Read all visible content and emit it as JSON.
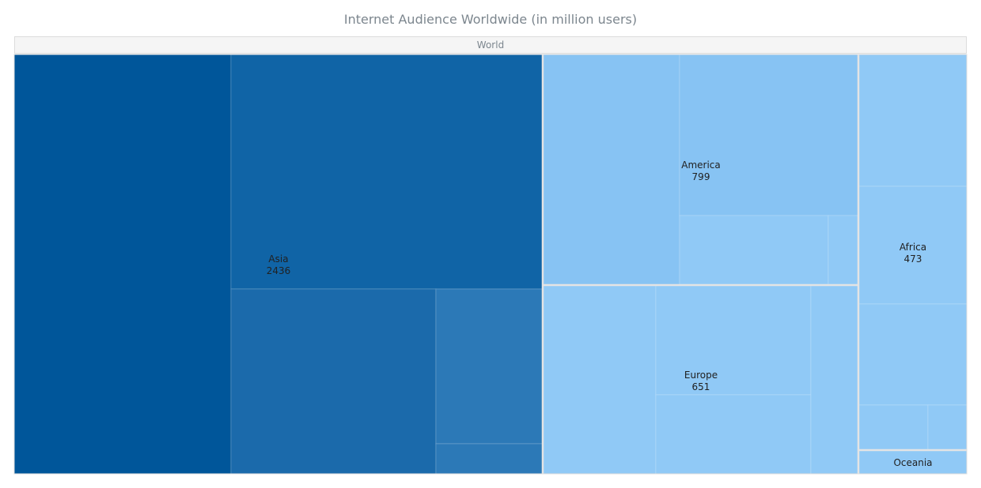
{
  "chart_data": {
    "type": "treemap",
    "title": "Internet Audience Worldwide (in million users)",
    "root": {
      "name": "World"
    },
    "regions": [
      {
        "name": "Asia",
        "value": 2436,
        "color": "#1064a6"
      },
      {
        "name": "America",
        "value": 799,
        "color": "#87c3f3"
      },
      {
        "name": "Europe",
        "value": 651,
        "color": "#90c9f6"
      },
      {
        "name": "Africa",
        "value": 473,
        "color": "#90c9f6"
      },
      {
        "name": "Oceania",
        "value": null,
        "color": "#90c9f6"
      }
    ],
    "colors": {
      "darkest": "#00569a",
      "dark": "#1064a6",
      "medium": "#1b6aab",
      "mediumLight": "#2c79b7",
      "light": "#87c3f3",
      "lighter": "#90c9f6",
      "border": "#e4e4e4"
    }
  }
}
